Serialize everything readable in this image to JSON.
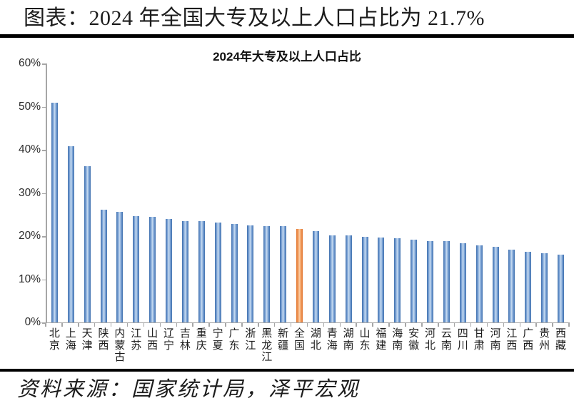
{
  "page": {
    "title": "图表：2024 年全国大专及以上人口占比为 21.7%",
    "source_note": "资料来源：国家统计局，泽平宏观"
  },
  "chart_data": {
    "type": "bar",
    "title": "2024年大专及以上人口占比",
    "unit": "%",
    "categories": [
      "北京",
      "上海",
      "天津",
      "陕西",
      "内蒙古",
      "江苏",
      "山西",
      "辽宁",
      "吉林",
      "重庆",
      "宁夏",
      "广东",
      "浙江",
      "黑龙江",
      "新疆",
      "全国",
      "湖北",
      "青海",
      "湖南",
      "山东",
      "福建",
      "海南",
      "安徽",
      "河北",
      "云南",
      "四川",
      "甘肃",
      "河南",
      "江西",
      "广西",
      "贵州",
      "西藏"
    ],
    "values": [
      50.9,
      40.9,
      36.2,
      26.2,
      25.6,
      24.6,
      24.4,
      24.0,
      23.5,
      23.4,
      23.2,
      22.8,
      22.5,
      22.3,
      22.3,
      21.7,
      21.2,
      20.2,
      20.1,
      19.9,
      19.7,
      19.5,
      19.2,
      18.9,
      18.8,
      18.3,
      17.9,
      17.6,
      16.8,
      16.4,
      16.0,
      15.7
    ],
    "highlight_category": "全国",
    "highlight_index": 15,
    "highlight_value_label": "21.7%",
    "ylim": [
      0,
      60
    ],
    "ytick_step": 10,
    "ytick_labels_top_down": [
      "60%",
      "50%",
      "40%",
      "30%",
      "20%",
      "10%",
      "0%"
    ],
    "xlabel": "",
    "ylabel": "",
    "grid": false,
    "legend": "none",
    "x_label_orientation": "vertical-stacked",
    "colors": {
      "bar_dark": "#3e6fad",
      "bar_mid": "#7ca3d6",
      "bar_light": "#caddf1",
      "highlight_dark": "#e0742f",
      "highlight_mid": "#f29c5d",
      "highlight_light": "#fbd0a9",
      "axis": "#a6a6a6",
      "rule": "#000000"
    }
  }
}
